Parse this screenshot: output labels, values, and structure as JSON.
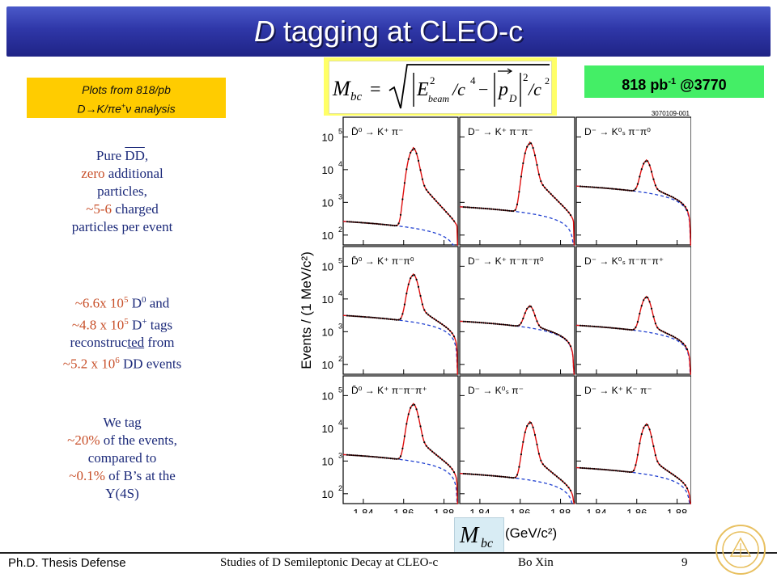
{
  "slide": {
    "title_italic": "D",
    "title_rest": " tagging at CLEO-c",
    "formula_lhs": "M",
    "formula_lhs_sub": "bc",
    "formula_eq": "=",
    "formula_e": "E",
    "formula_e_sup": "2",
    "formula_e_sub": "beam",
    "formula_c4": "/c",
    "formula_c4_sup": "4",
    "formula_minus": "−",
    "formula_p": "p",
    "formula_p_sub": "D",
    "formula_p_sup": "2",
    "formula_c2": "/c",
    "formula_c2_sup": "2",
    "lumi_main": "818 pb",
    "lumi_sup": "-1",
    "lumi_rest": " @3770",
    "plots_line1": "Plots from 818/pb",
    "plots_line2_a": "D→K/πe",
    "plots_line2_sup": "+",
    "plots_line2_b": "ν analysis",
    "block1": {
      "pure": "Pure ",
      "dd": "DD",
      "comma": ",",
      "zero": "zero",
      "additional": " additional",
      "particles": "particles,",
      "tilde56": "~5-6",
      "charged": " charged",
      "per_event": "particles per event"
    },
    "block2": {
      "a1": "~6.6x 10",
      "a1sup": "5",
      "a1b": " D",
      "a1bsup": "0",
      "a1c": " and",
      "a2": "~4.8 x 10",
      "a2sup": "5",
      "a2b": " D",
      "a2bsup": "+",
      "a2c": " tags",
      "a3a": "reconstruc",
      "a3ul": "ted",
      "a3b": " from",
      "a4": "~5.2 x 10",
      "a4sup": "6",
      "a4b": " DD events"
    },
    "block3": {
      "we_tag": "We tag",
      "pct20": "~20%",
      "of_events": " of the events,",
      "compared": "compared to",
      "pct01": "~0.1%",
      "of_bs": " of B’s at the",
      "y4s": "Υ(4S)"
    },
    "footer_left": "Ph.D. Thesis Defense",
    "footer_mid": "Studies of D Semileptonic Decay at CLEO-c",
    "footer_author": "Bo Xin",
    "page_number": "9",
    "mbc_label": "M",
    "mbc_sub": "bc",
    "gev_label": "(GeV/c²)"
  },
  "chart_data": {
    "type": "line",
    "plot_id": "3070109-001",
    "ylabel": "Events / (1 MeV/c²)",
    "xlabel": "(GeV/c²)",
    "yscale": "log",
    "xlim": [
      1.83,
      1.887
    ],
    "ylim": [
      50,
      400000
    ],
    "x_ticks": [
      "1.84",
      "1.86",
      "1.88"
    ],
    "x_tick_values": [
      1.84,
      1.86,
      1.88
    ],
    "y_ticks": [
      "10",
      "10",
      "10",
      "10"
    ],
    "y_tick_exps": [
      "2",
      "3",
      "4",
      "5"
    ],
    "y_tick_values": [
      100,
      1000,
      10000,
      100000
    ],
    "panels": [
      {
        "label": "D̄⁰ → K⁺ π⁻",
        "peak": 40000,
        "bg": 250,
        "tail": 1.4
      },
      {
        "label": "D⁻ → K⁺ π⁻π⁻",
        "peak": 60000,
        "bg": 700,
        "tail": 1.2
      },
      {
        "label": "D⁻ → K⁰ₛ π⁻π⁰",
        "peak": 16000,
        "bg": 3000,
        "tail": 0.9
      },
      {
        "label": "D̄⁰ → K⁺ π⁻π⁰",
        "peak": 50000,
        "bg": 3000,
        "tail": 1.0
      },
      {
        "label": "D⁻ → K⁺ π⁻π⁻π⁰",
        "peak": 4500,
        "bg": 2000,
        "tail": 0.8
      },
      {
        "label": "D⁻ → K⁰ₛ π⁻π⁻π⁺",
        "peak": 10000,
        "bg": 1500,
        "tail": 0.8
      },
      {
        "label": "D̄⁰ → K⁺ π⁻π⁻π⁺",
        "peak": 50000,
        "bg": 1500,
        "tail": 1.0
      },
      {
        "label": "D⁻ → K⁰ₛ π⁻",
        "peak": 14000,
        "bg": 400,
        "tail": 1.0
      },
      {
        "label": "D⁻ → K⁺ K⁻ π⁻",
        "peak": 12000,
        "bg": 600,
        "tail": 0.9
      }
    ],
    "colors": {
      "fit": "#e01010",
      "background": "#2040d0",
      "points": "#000000"
    }
  }
}
